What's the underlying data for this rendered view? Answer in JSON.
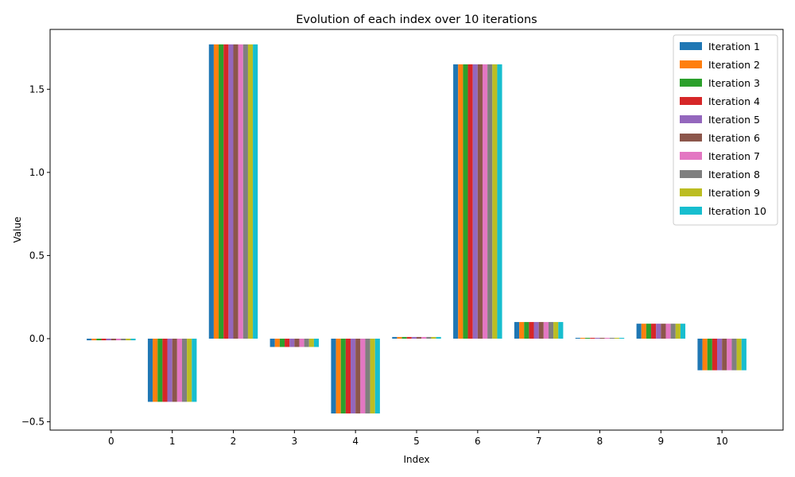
{
  "chart_data": {
    "type": "bar",
    "title": "Evolution of each index over 10 iterations",
    "xlabel": "Index",
    "ylabel": "Value",
    "categories": [
      "0",
      "1",
      "2",
      "3",
      "4",
      "5",
      "6",
      "7",
      "8",
      "9",
      "10"
    ],
    "ylim": [
      -0.55,
      1.86
    ],
    "yticks": [
      -0.5,
      0.0,
      0.5,
      1.0,
      1.5
    ],
    "ytick_labels": [
      "−0.5",
      "0.0",
      "0.5",
      "1.0",
      "1.5"
    ],
    "grid": false,
    "legend_position": "top-right",
    "series": [
      {
        "name": "Iteration 1",
        "color": "#1f77b4",
        "values": [
          -0.01,
          -0.38,
          1.77,
          -0.05,
          -0.45,
          0.01,
          1.65,
          0.1,
          0.005,
          0.09,
          -0.19
        ]
      },
      {
        "name": "Iteration 2",
        "color": "#ff7f0e",
        "values": [
          -0.01,
          -0.38,
          1.77,
          -0.05,
          -0.45,
          0.01,
          1.65,
          0.1,
          0.005,
          0.09,
          -0.19
        ]
      },
      {
        "name": "Iteration 3",
        "color": "#2ca02c",
        "values": [
          -0.01,
          -0.38,
          1.77,
          -0.05,
          -0.45,
          0.01,
          1.65,
          0.1,
          0.005,
          0.09,
          -0.19
        ]
      },
      {
        "name": "Iteration 4",
        "color": "#d62728",
        "values": [
          -0.01,
          -0.38,
          1.77,
          -0.05,
          -0.45,
          0.01,
          1.65,
          0.1,
          0.005,
          0.09,
          -0.19
        ]
      },
      {
        "name": "Iteration 5",
        "color": "#9467bd",
        "values": [
          -0.01,
          -0.38,
          1.77,
          -0.05,
          -0.45,
          0.01,
          1.65,
          0.1,
          0.005,
          0.09,
          -0.19
        ]
      },
      {
        "name": "Iteration 6",
        "color": "#8c564b",
        "values": [
          -0.01,
          -0.38,
          1.77,
          -0.05,
          -0.45,
          0.01,
          1.65,
          0.1,
          0.005,
          0.09,
          -0.19
        ]
      },
      {
        "name": "Iteration 7",
        "color": "#e377c2",
        "values": [
          -0.01,
          -0.38,
          1.77,
          -0.05,
          -0.45,
          0.01,
          1.65,
          0.1,
          0.005,
          0.09,
          -0.19
        ]
      },
      {
        "name": "Iteration 8",
        "color": "#7f7f7f",
        "values": [
          -0.01,
          -0.38,
          1.77,
          -0.05,
          -0.45,
          0.01,
          1.65,
          0.1,
          0.005,
          0.09,
          -0.19
        ]
      },
      {
        "name": "Iteration 9",
        "color": "#bcbd22",
        "values": [
          -0.01,
          -0.38,
          1.77,
          -0.05,
          -0.45,
          0.01,
          1.65,
          0.1,
          0.005,
          0.09,
          -0.19
        ]
      },
      {
        "name": "Iteration 10",
        "color": "#17becf",
        "values": [
          -0.01,
          -0.38,
          1.77,
          -0.05,
          -0.45,
          0.01,
          1.65,
          0.1,
          0.005,
          0.09,
          -0.19
        ]
      }
    ]
  }
}
